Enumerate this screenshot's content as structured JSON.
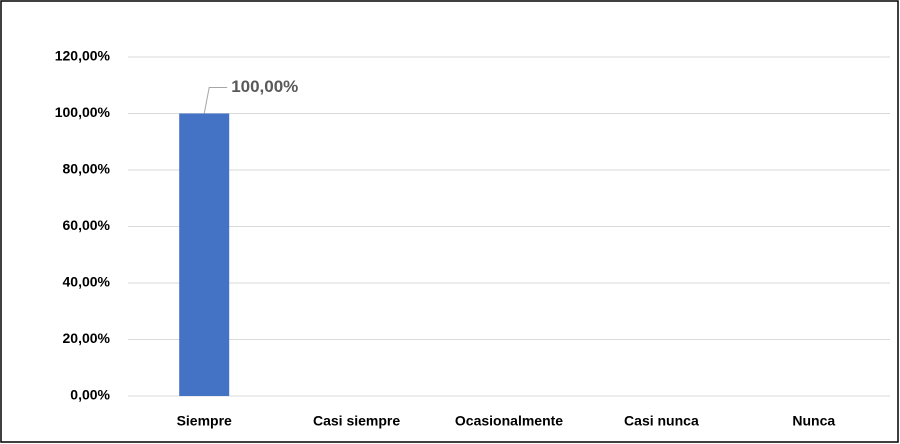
{
  "chart_data": {
    "type": "bar",
    "categories": [
      "Siempre",
      "Casi siempre",
      "Ocasionalmente",
      "Casi nunca",
      "Nunca"
    ],
    "values": [
      100,
      0,
      0,
      0,
      0
    ],
    "value_labels": [
      "100,00%",
      null,
      null,
      null,
      null
    ],
    "color": "#4472c4",
    "ylim": [
      0,
      120
    ],
    "yticks": [
      {
        "value": 0,
        "label": "0,00%"
      },
      {
        "value": 20,
        "label": "20,00%"
      },
      {
        "value": 40,
        "label": "40,00%"
      },
      {
        "value": 60,
        "label": "60,00%"
      },
      {
        "value": 80,
        "label": "80,00%"
      },
      {
        "value": 100,
        "label": "100,00%"
      },
      {
        "value": 120,
        "label": "120,00%"
      }
    ],
    "grid": true
  }
}
